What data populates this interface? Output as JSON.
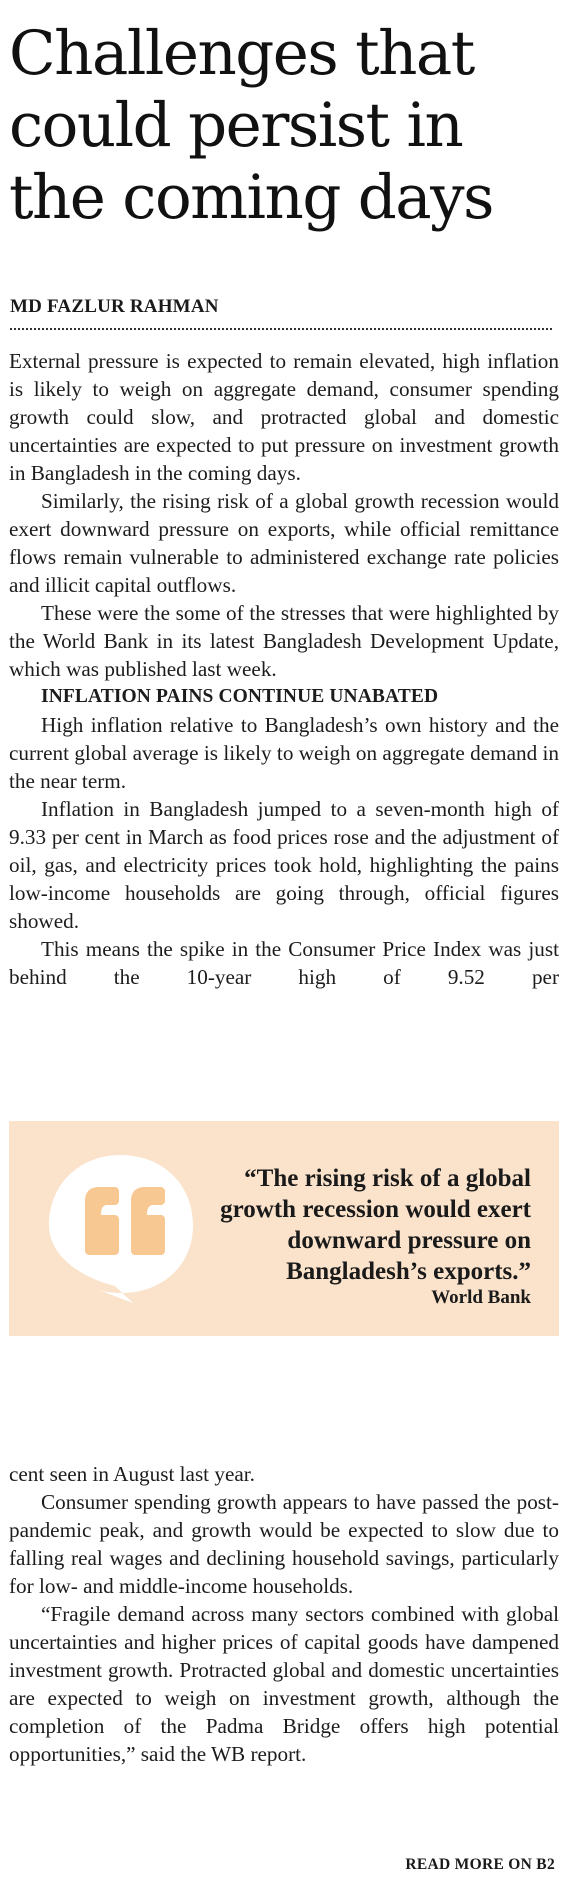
{
  "article": {
    "headline": "Challenges that could persist in the coming days",
    "byline": "MD FAZLUR RAHMAN",
    "paragraphs_top": [
      "External pressure is expected to remain elevated, high inflation is likely to weigh on aggregate demand, consumer spending growth could slow, and protracted global and domestic uncertainties are expected to put pressure on investment growth in Bangladesh in the coming days.",
      "Similarly, the rising risk of a global growth recession would exert downward pressure on exports, while official remittance flows remain vulnerable to administered exchange rate policies and illicit capital outflows.",
      "These were the some of the stresses that were highlighted by the World Bank in its latest Bangladesh Development Update, which was published last week."
    ],
    "subhead": "INFLATION PAINS CONTINUE UNABATED",
    "paragraphs_middle": [
      "High inflation relative to Bangladesh’s own history and the current global average is likely to weigh on aggregate demand in the near term.",
      "Inflation in Bangladesh jumped to a seven-month high of 9.33 per cent in March as food prices rose and the adjustment of oil, gas, and electricity prices took hold, highlighting the pains low-income households are going through, official figures showed.",
      "This means the spike in the Consumer Price Index was just behind the 10-year high of 9.52 per"
    ],
    "pullquote": {
      "icon": "quote-mark-icon",
      "text": "“The rising risk of a global growth recession would exert downward pressure on Bangladesh’s exports.”",
      "attribution": "World Bank",
      "background_color": "#fbe3cb",
      "icon_color": "#f7c892"
    },
    "paragraphs_bottom": [
      "cent seen in August last year.",
      "Consumer spending growth appears to have passed the post-pandemic peak, and growth would be expected to slow due to falling real wages and declining household savings, particularly for low- and middle-income households.",
      "“Fragile demand across many sectors combined with global uncertainties and higher prices of capital goods have dampened investment growth. Protracted global and domestic uncertainties are expected to weigh on investment growth, although the completion of the Padma Bridge offers high potential opportunities,” said the WB report."
    ],
    "read_more": "READ MORE ON B2"
  }
}
